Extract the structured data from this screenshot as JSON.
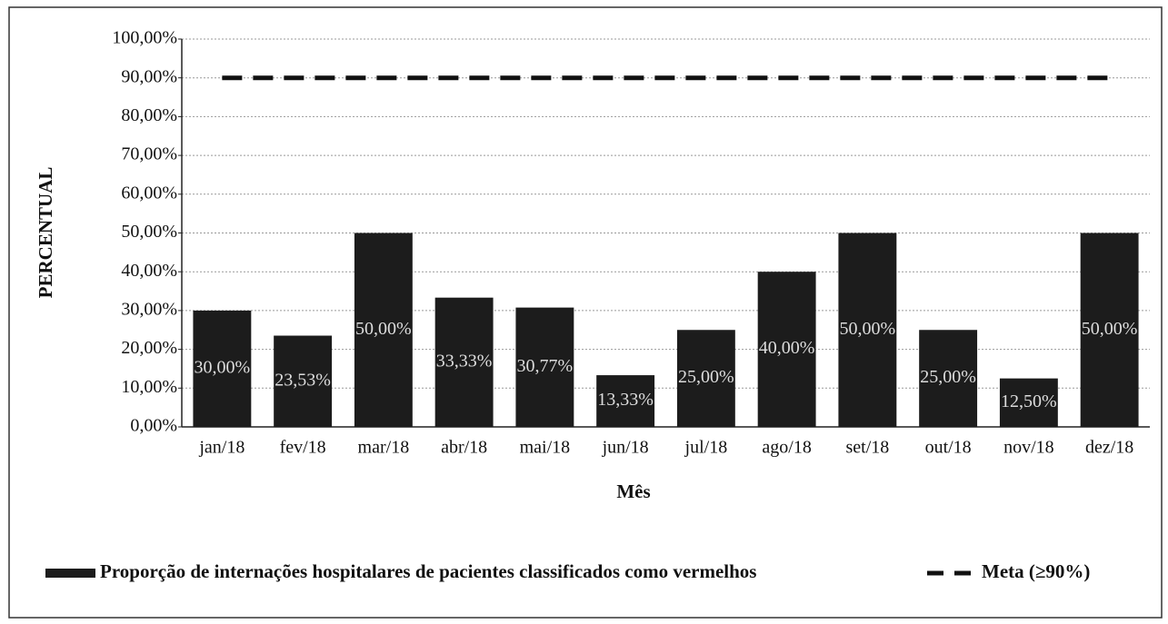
{
  "chart_data": {
    "type": "bar",
    "x_label": "Mês",
    "y_label": "PERCENTUAL",
    "categories": [
      "jan/18",
      "fev/18",
      "mar/18",
      "abr/18",
      "mai/18",
      "jun/18",
      "jul/18",
      "ago/18",
      "set/18",
      "out/18",
      "nov/18",
      "dez/18"
    ],
    "series": [
      {
        "name": "Proporção de internações hospitalares de pacientes classificados como vermelhos",
        "color": "#1c1c1c",
        "values": [
          30,
          23.53,
          50,
          33.33,
          30.77,
          13.33,
          25,
          40,
          50,
          25,
          12.5,
          50
        ],
        "value_labels": [
          "30,00%",
          "23,53%",
          "50,00%",
          "33,33%",
          "30,77%",
          "13,33%",
          "25,00%",
          "40,00%",
          "50,00%",
          "25,00%",
          "12,50%",
          "50,00%"
        ]
      },
      {
        "name": "Meta (≥90%)",
        "color": "#111111",
        "line_style": "dashed",
        "values": [
          90,
          90,
          90,
          90,
          90,
          90,
          90,
          90,
          90,
          90,
          90,
          90
        ]
      }
    ],
    "ylim": [
      0,
      100
    ],
    "yticks": [
      {
        "value": 0,
        "label": "0,00%"
      },
      {
        "value": 10,
        "label": "10,00%"
      },
      {
        "value": 20,
        "label": "20,00%"
      },
      {
        "value": 30,
        "label": "30,00%"
      },
      {
        "value": 40,
        "label": "40,00%"
      },
      {
        "value": 50,
        "label": "50,00%"
      },
      {
        "value": 60,
        "label": "60,00%"
      },
      {
        "value": 70,
        "label": "70,00%"
      },
      {
        "value": 80,
        "label": "80,00%"
      },
      {
        "value": 90,
        "label": "90,00%"
      },
      {
        "value": 100,
        "label": "100,00%"
      }
    ],
    "grid": true,
    "legend": "bottom"
  }
}
